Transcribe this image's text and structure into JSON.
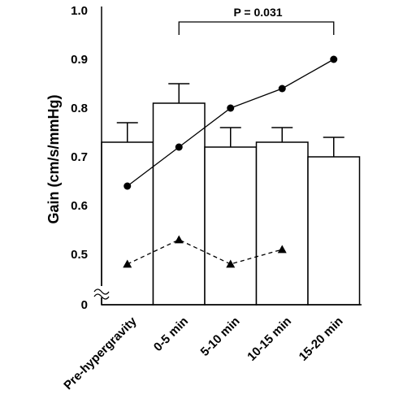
{
  "chart_data": {
    "type": "bar",
    "ylabel": "Gain (cm/s/mmHg)",
    "ylim": [
      0,
      1.0
    ],
    "yticks": [
      "0",
      "0.5",
      "0.6",
      "0.7",
      "0.8",
      "0.9",
      "1.0"
    ],
    "axis_break": true,
    "categories": [
      "Pre-hypergravity",
      "0-5 min",
      "5-10 min",
      "10-15 min",
      "15-20 min"
    ],
    "bars": {
      "values": [
        0.73,
        0.81,
        0.72,
        0.73,
        0.7
      ],
      "error_upper": [
        0.04,
        0.04,
        0.04,
        0.03,
        0.04
      ]
    },
    "series": [
      {
        "marker": "circle",
        "line": "solid",
        "values": [
          0.64,
          0.72,
          0.8,
          0.84,
          0.9
        ]
      },
      {
        "marker": "triangle",
        "line": "dashed",
        "values": [
          0.48,
          0.53,
          0.48,
          0.51,
          null
        ]
      }
    ],
    "annotation": {
      "text": "P = 0.031",
      "from": "0-5 min",
      "to": "15-20 min"
    },
    "colors": {
      "bar_fill": "#ffffff",
      "stroke": "#000000"
    }
  }
}
